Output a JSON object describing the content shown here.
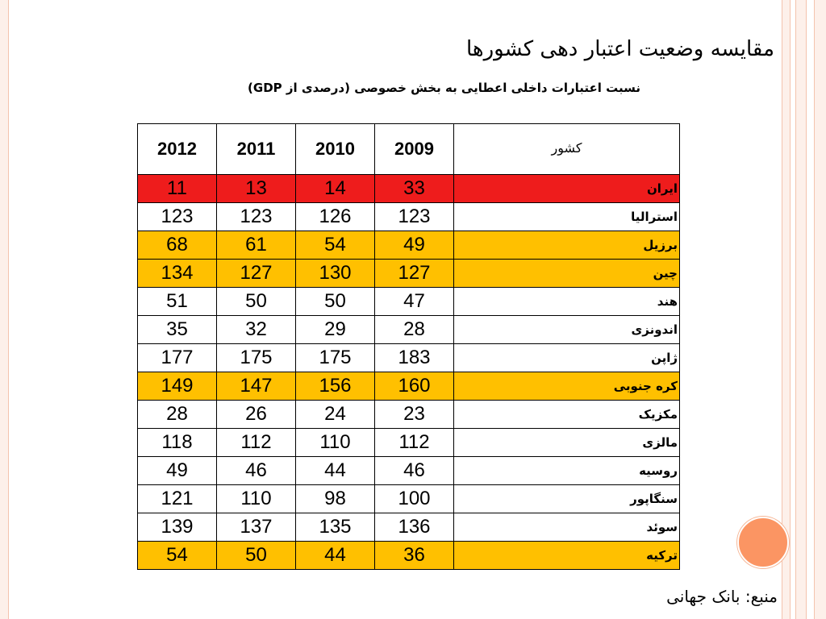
{
  "title": "مقایسه وضعیت اعتبار دهی کشورها",
  "subtitle": "نسبت اعتبارات داخلی اعطایی به بخش خصوصی (درصدی از GDP)",
  "source": "منبع: بانک جهانی",
  "colors": {
    "highlight_red": "#ee1c1c",
    "highlight_yellow": "#ffc000",
    "accent": "#fb9563"
  },
  "table": {
    "headers": [
      "2012",
      "2011",
      "2010",
      "2009",
      "کشور"
    ],
    "rows": [
      {
        "country": "ایران",
        "values": [
          "11",
          "13",
          "14",
          "33"
        ],
        "highlight": "red"
      },
      {
        "country": "استرالیا",
        "values": [
          "123",
          "123",
          "126",
          "123"
        ],
        "highlight": ""
      },
      {
        "country": "برزیل",
        "values": [
          "68",
          "61",
          "54",
          "49"
        ],
        "highlight": "yellow"
      },
      {
        "country": "چین",
        "values": [
          "134",
          "127",
          "130",
          "127"
        ],
        "highlight": "yellow"
      },
      {
        "country": "هند",
        "values": [
          "51",
          "50",
          "50",
          "47"
        ],
        "highlight": ""
      },
      {
        "country": "اندونزی",
        "values": [
          "35",
          "32",
          "29",
          "28"
        ],
        "highlight": ""
      },
      {
        "country": "ژاپن",
        "values": [
          "177",
          "175",
          "175",
          "183"
        ],
        "highlight": ""
      },
      {
        "country": "کره جنوبی",
        "values": [
          "149",
          "147",
          "156",
          "160"
        ],
        "highlight": "yellow"
      },
      {
        "country": "مکزیک",
        "values": [
          "28",
          "26",
          "24",
          "23"
        ],
        "highlight": ""
      },
      {
        "country": "مالزی",
        "values": [
          "118",
          "112",
          "110",
          "112"
        ],
        "highlight": ""
      },
      {
        "country": "روسیه",
        "values": [
          "49",
          "46",
          "44",
          "46"
        ],
        "highlight": ""
      },
      {
        "country": "سنگاپور",
        "values": [
          "121",
          "110",
          "98",
          "100"
        ],
        "highlight": ""
      },
      {
        "country": "سوئد",
        "values": [
          "139",
          "137",
          "135",
          "136"
        ],
        "highlight": ""
      },
      {
        "country": "ترکیه",
        "values": [
          "54",
          "50",
          "44",
          "36"
        ],
        "highlight": "yellow"
      }
    ]
  }
}
